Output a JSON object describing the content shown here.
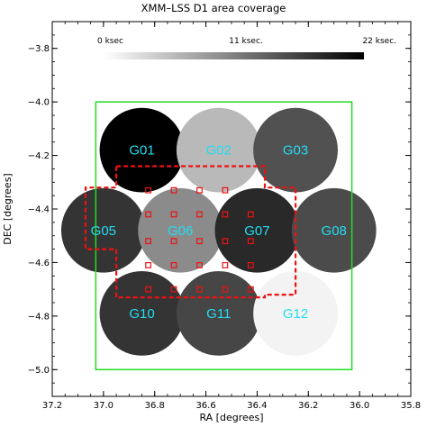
{
  "chart_data": {
    "type": "scatter",
    "title": "XMM–LSS D1 area coverage",
    "xlabel": "RA [degrees]",
    "ylabel": "DEC [degrees]",
    "xlim": [
      37.2,
      35.8
    ],
    "ylim": [
      -5.1,
      -3.7
    ],
    "x_ticks": [
      "37.2",
      "37.0",
      "36.8",
      "36.6",
      "36.4",
      "36.2",
      "36.0",
      "35.8"
    ],
    "x_tick_values": [
      37.2,
      37.0,
      36.8,
      36.6,
      36.4,
      36.2,
      36.0,
      35.8
    ],
    "y_ticks": [
      "−3.8",
      "−4.0",
      "−4.2",
      "−4.4",
      "−4.6",
      "−4.8",
      "−5.0"
    ],
    "y_tick_values": [
      -3.8,
      -4.0,
      -4.2,
      -4.4,
      -4.6,
      -4.8,
      -5.0
    ],
    "colorbar": {
      "labels": [
        "0 ksec",
        "11 ksec.",
        "22 ksec."
      ],
      "min": 0,
      "max": 22,
      "unit": "ksec"
    },
    "fields": [
      {
        "name": "G01",
        "ra": 36.85,
        "dec": -4.18,
        "exposure": 22
      },
      {
        "name": "G02",
        "ra": 36.55,
        "dec": -4.18,
        "exposure": 6
      },
      {
        "name": "G03",
        "ra": 36.25,
        "dec": -4.18,
        "exposure": 15
      },
      {
        "name": "G05",
        "ra": 37.0,
        "dec": -4.48,
        "exposure": 17.5
      },
      {
        "name": "G06",
        "ra": 36.7,
        "dec": -4.48,
        "exposure": 10
      },
      {
        "name": "G07",
        "ra": 36.4,
        "dec": -4.48,
        "exposure": 18.5
      },
      {
        "name": "G08",
        "ra": 36.1,
        "dec": -4.48,
        "exposure": 15.5
      },
      {
        "name": "G10",
        "ra": 36.85,
        "dec": -4.79,
        "exposure": 17.5
      },
      {
        "name": "G11",
        "ra": 36.55,
        "dec": -4.79,
        "exposure": 16
      },
      {
        "name": "G12",
        "ra": 36.25,
        "dec": -4.79,
        "exposure": 1
      }
    ],
    "field_radius_deg": 0.165,
    "green_box": {
      "ra": [
        37.03,
        36.03
      ],
      "dec": [
        -4.0,
        -5.0
      ]
    },
    "red_outline": [
      [
        36.95,
        -4.24
      ],
      [
        36.37,
        -4.24
      ],
      [
        36.37,
        -4.32
      ],
      [
        36.25,
        -4.32
      ],
      [
        36.25,
        -4.72
      ],
      [
        36.37,
        -4.72
      ],
      [
        36.37,
        -4.73
      ],
      [
        36.95,
        -4.73
      ],
      [
        36.95,
        -4.55
      ],
      [
        37.07,
        -4.55
      ],
      [
        37.07,
        -4.32
      ],
      [
        36.95,
        -4.32
      ]
    ],
    "red_markers": [
      [
        36.825,
        -4.33
      ],
      [
        36.725,
        -4.33
      ],
      [
        36.625,
        -4.33
      ],
      [
        36.525,
        -4.33
      ],
      [
        36.825,
        -4.42
      ],
      [
        36.725,
        -4.42
      ],
      [
        36.625,
        -4.42
      ],
      [
        36.525,
        -4.42
      ],
      [
        36.425,
        -4.42
      ],
      [
        36.825,
        -4.52
      ],
      [
        36.725,
        -4.52
      ],
      [
        36.625,
        -4.52
      ],
      [
        36.525,
        -4.52
      ],
      [
        36.425,
        -4.52
      ],
      [
        36.825,
        -4.61
      ],
      [
        36.725,
        -4.61
      ],
      [
        36.625,
        -4.61
      ],
      [
        36.525,
        -4.61
      ],
      [
        36.425,
        -4.61
      ],
      [
        36.825,
        -4.7
      ],
      [
        36.725,
        -4.7
      ],
      [
        36.625,
        -4.7
      ],
      [
        36.525,
        -4.7
      ],
      [
        36.425,
        -4.7
      ]
    ],
    "colors": {
      "label": "#22ddf2",
      "green_box": "#22dd22",
      "red": "#ee1111",
      "axis": "#000000"
    }
  }
}
